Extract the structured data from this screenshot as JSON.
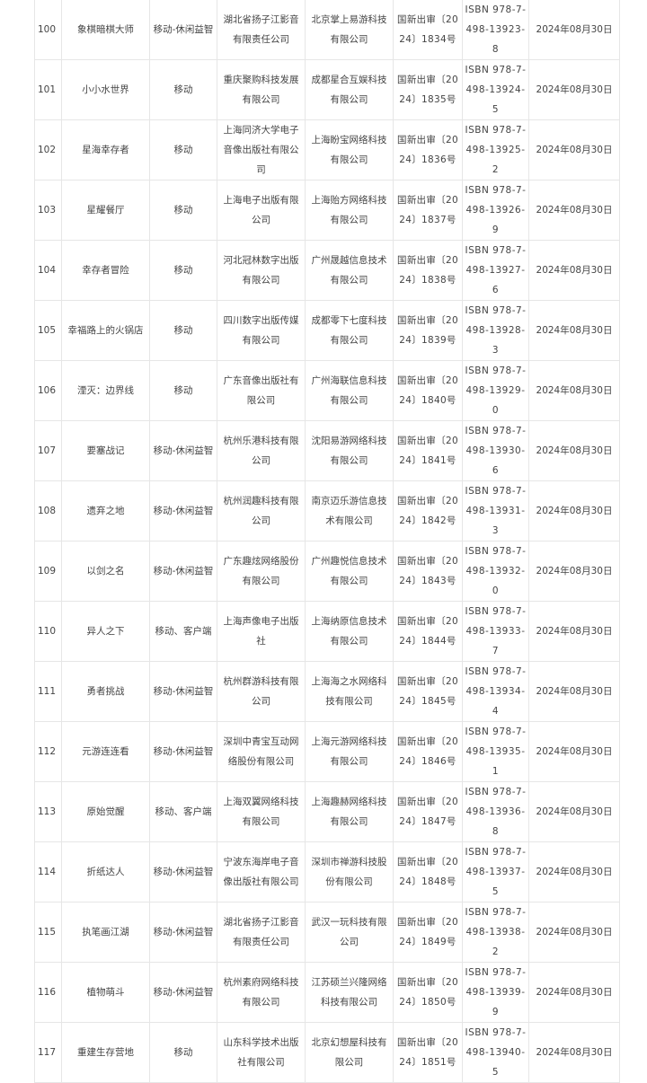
{
  "rows": [
    {
      "no": "100",
      "name": "象棋暗棋大师",
      "category": "移动-休闲益智",
      "publisher": "湖北省扬子江影音有限责任公司",
      "operator": "北京掌上易游科技有限公司",
      "approval": "国新出审〔2024〕1834号",
      "isbn": "ISBN 978-7-498-13923-8",
      "date": "2024年08月30日"
    },
    {
      "no": "101",
      "name": "小小水世界",
      "category": "移动",
      "publisher": "重庆聚购科技发展有限公司",
      "operator": "成都星合互娱科技有限公司",
      "approval": "国新出审〔2024〕1835号",
      "isbn": "ISBN 978-7-498-13924-5",
      "date": "2024年08月30日"
    },
    {
      "no": "102",
      "name": "星海幸存者",
      "category": "移动",
      "publisher": "上海同济大学电子音像出版社有限公司",
      "operator": "上海盼宝网络科技有限公司",
      "approval": "国新出审〔2024〕1836号",
      "isbn": "ISBN 978-7-498-13925-2",
      "date": "2024年08月30日"
    },
    {
      "no": "103",
      "name": "星耀餐厅",
      "category": "移动",
      "publisher": "上海电子出版有限公司",
      "operator": "上海贻方网络科技有限公司",
      "approval": "国新出审〔2024〕1837号",
      "isbn": "ISBN 978-7-498-13926-9",
      "date": "2024年08月30日"
    },
    {
      "no": "104",
      "name": "幸存者冒险",
      "category": "移动",
      "publisher": "河北冠林数字出版有限公司",
      "operator": "广州晟越信息技术有限公司",
      "approval": "国新出审〔2024〕1838号",
      "isbn": "ISBN 978-7-498-13927-6",
      "date": "2024年08月30日"
    },
    {
      "no": "105",
      "name": "幸福路上的火锅店",
      "category": "移动",
      "publisher": "四川数字出版传媒有限公司",
      "operator": "成都零下七度科技有限公司",
      "approval": "国新出审〔2024〕1839号",
      "isbn": "ISBN 978-7-498-13928-3",
      "date": "2024年08月30日"
    },
    {
      "no": "106",
      "name": "湮灭：边界线",
      "category": "移动",
      "publisher": "广东音像出版社有限公司",
      "operator": "广州海联信息科技有限公司",
      "approval": "国新出审〔2024〕1840号",
      "isbn": "ISBN 978-7-498-13929-0",
      "date": "2024年08月30日"
    },
    {
      "no": "107",
      "name": "要塞战记",
      "category": "移动-休闲益智",
      "publisher": "杭州乐港科技有限公司",
      "operator": "沈阳易游网络科技有限公司",
      "approval": "国新出审〔2024〕1841号",
      "isbn": "ISBN 978-7-498-13930-6",
      "date": "2024年08月30日"
    },
    {
      "no": "108",
      "name": "遗弃之地",
      "category": "移动-休闲益智",
      "publisher": "杭州润趣科技有限公司",
      "operator": "南京迈乐游信息技术有限公司",
      "approval": "国新出审〔2024〕1842号",
      "isbn": "ISBN 978-7-498-13931-3",
      "date": "2024年08月30日"
    },
    {
      "no": "109",
      "name": "以剑之名",
      "category": "移动-休闲益智",
      "publisher": "广东趣炫网络股份有限公司",
      "operator": "广州趣悦信息技术有限公司",
      "approval": "国新出审〔2024〕1843号",
      "isbn": "ISBN 978-7-498-13932-0",
      "date": "2024年08月30日"
    },
    {
      "no": "110",
      "name": "异人之下",
      "category": "移动、客户端",
      "publisher": "上海声像电子出版社",
      "operator": "上海纳原信息技术有限公司",
      "approval": "国新出审〔2024〕1844号",
      "isbn": "ISBN 978-7-498-13933-7",
      "date": "2024年08月30日"
    },
    {
      "no": "111",
      "name": "勇者挑战",
      "category": "移动-休闲益智",
      "publisher": "杭州群游科技有限公司",
      "operator": "上海海之水网络科技有限公司",
      "approval": "国新出审〔2024〕1845号",
      "isbn": "ISBN 978-7-498-13934-4",
      "date": "2024年08月30日"
    },
    {
      "no": "112",
      "name": "元游连连看",
      "category": "移动-休闲益智",
      "publisher": "深圳中青宝互动网络股份有限公司",
      "operator": "上海元游网络科技有限公司",
      "approval": "国新出审〔2024〕1846号",
      "isbn": "ISBN 978-7-498-13935-1",
      "date": "2024年08月30日"
    },
    {
      "no": "113",
      "name": "原始觉醒",
      "category": "移动、客户端",
      "publisher": "上海双翼网络科技有限公司",
      "operator": "上海趣赫网络科技有限公司",
      "approval": "国新出审〔2024〕1847号",
      "isbn": "ISBN 978-7-498-13936-8",
      "date": "2024年08月30日"
    },
    {
      "no": "114",
      "name": "折纸达人",
      "category": "移动-休闲益智",
      "publisher": "宁波东海岸电子音像出版社有限公司",
      "operator": "深圳市禅游科技股份有限公司",
      "approval": "国新出审〔2024〕1848号",
      "isbn": "ISBN 978-7-498-13937-5",
      "date": "2024年08月30日"
    },
    {
      "no": "115",
      "name": "执笔画江湖",
      "category": "移动-休闲益智",
      "publisher": "湖北省扬子江影音有限责任公司",
      "operator": "武汉一玩科技有限公司",
      "approval": "国新出审〔2024〕1849号",
      "isbn": "ISBN 978-7-498-13938-2",
      "date": "2024年08月30日"
    },
    {
      "no": "116",
      "name": "植物萌斗",
      "category": "移动-休闲益智",
      "publisher": "杭州素府网络科技有限公司",
      "operator": "江苏硕兰兴隆网络科技有限公司",
      "approval": "国新出审〔2024〕1850号",
      "isbn": "ISBN 978-7-498-13939-9",
      "date": "2024年08月30日"
    },
    {
      "no": "117",
      "name": "重建生存营地",
      "category": "移动",
      "publisher": "山东科学技术出版社有限公司",
      "operator": "北京幻想屋科技有限公司",
      "approval": "国新出审〔2024〕1851号",
      "isbn": "ISBN 978-7-498-13940-5",
      "date": "2024年08月30日"
    }
  ]
}
